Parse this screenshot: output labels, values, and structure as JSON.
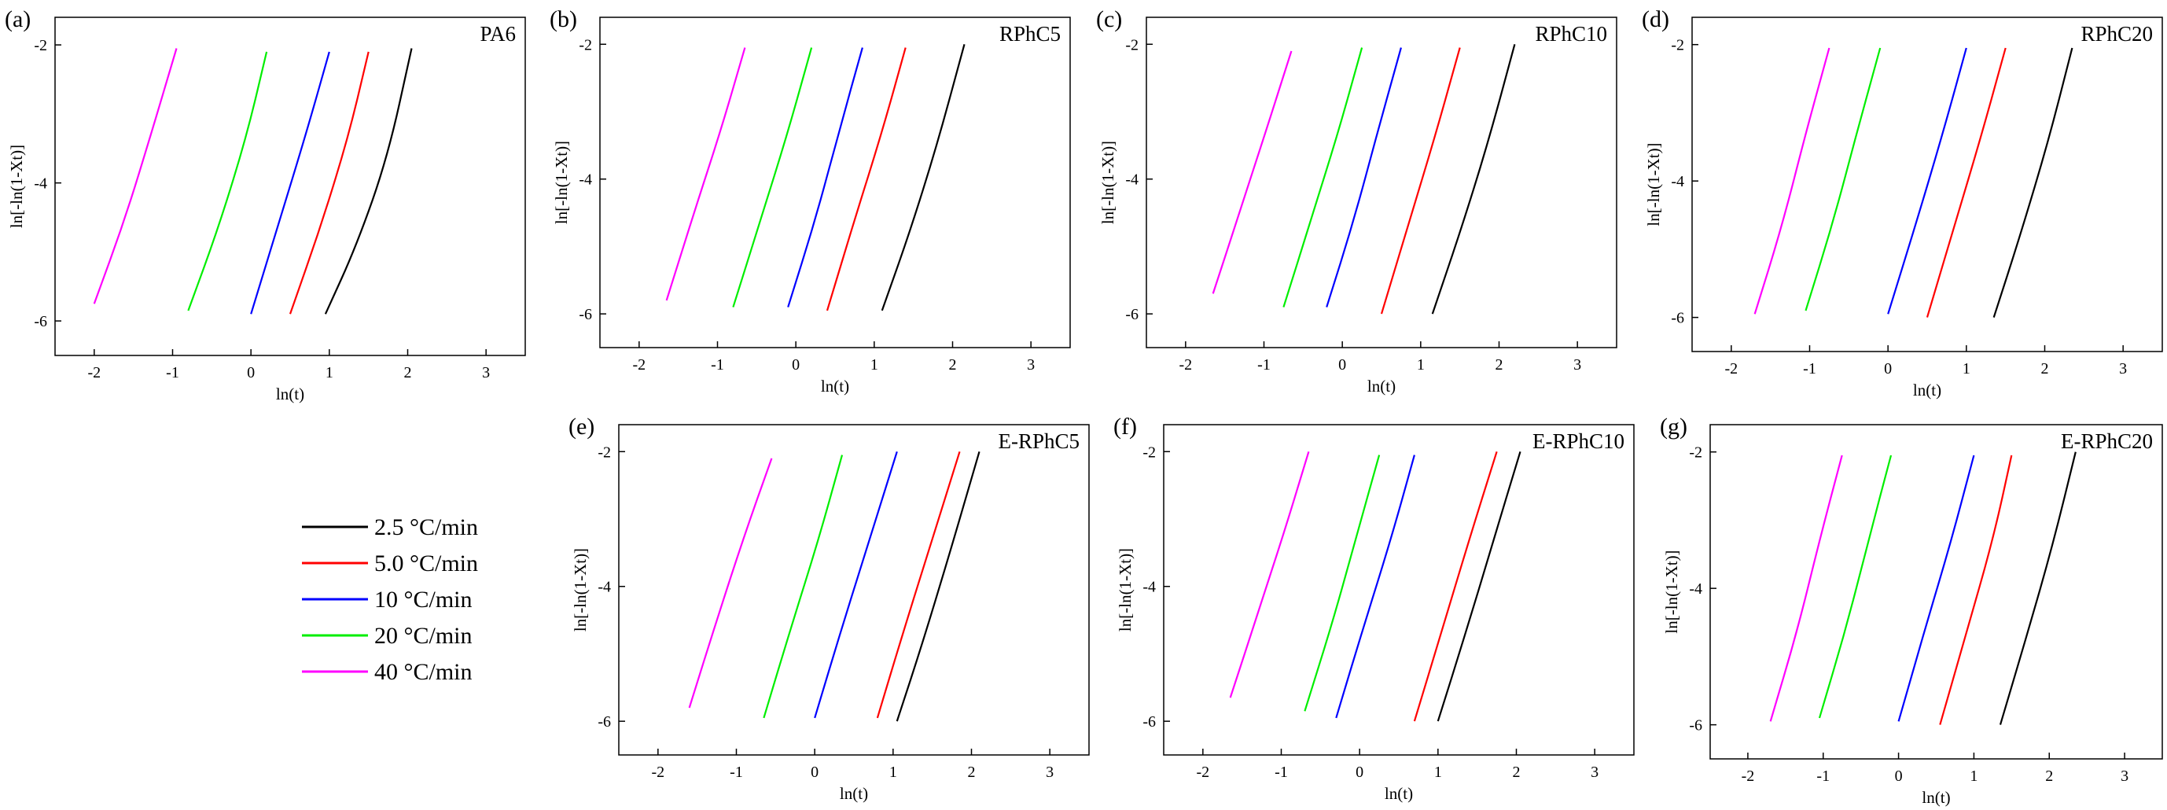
{
  "legend": {
    "entries": [
      {
        "label": "2.5 °C/min",
        "color": "#000000"
      },
      {
        "label": "5.0 °C/min",
        "color": "#ff0000"
      },
      {
        "label": "10 °C/min",
        "color": "#0000ff"
      },
      {
        "label": "20 °C/min",
        "color": "#00ee00"
      },
      {
        "label": "40 °C/min",
        "color": "#ff00ff"
      }
    ]
  },
  "chart_data": [
    {
      "type": "line",
      "panel": "(a)",
      "title": "PA6",
      "xlabel": "ln(t)",
      "ylabel": "ln[-ln(1-Xt)]",
      "xlim": [
        -2.5,
        3.5
      ],
      "ylim": [
        -6.5,
        -1.6
      ],
      "xticks": [
        "-2",
        "-1",
        "0",
        "1",
        "2",
        "3"
      ],
      "yticks": [
        "-2",
        "-4",
        "-6"
      ],
      "series": [
        {
          "name": "2.5 °C/min",
          "color": "#000000",
          "points": [
            [
              0.95,
              -5.9
            ],
            [
              1.35,
              -4.9
            ],
            [
              1.75,
              -3.6
            ],
            [
              2.05,
              -2.05
            ]
          ]
        },
        {
          "name": "5.0 °C/min",
          "color": "#ff0000",
          "points": [
            [
              0.5,
              -5.9
            ],
            [
              0.9,
              -4.6
            ],
            [
              1.25,
              -3.3
            ],
            [
              1.5,
              -2.1
            ]
          ]
        },
        {
          "name": "10 °C/min",
          "color": "#0000ff",
          "points": [
            [
              0.0,
              -5.9
            ],
            [
              0.35,
              -4.6
            ],
            [
              0.7,
              -3.3
            ],
            [
              1.0,
              -2.1
            ]
          ]
        },
        {
          "name": "20 °C/min",
          "color": "#00ee00",
          "points": [
            [
              -0.8,
              -5.85
            ],
            [
              -0.4,
              -4.6
            ],
            [
              -0.05,
              -3.3
            ],
            [
              0.2,
              -2.1
            ]
          ]
        },
        {
          "name": "40 °C/min",
          "color": "#ff00ff",
          "points": [
            [
              -2.0,
              -5.75
            ],
            [
              -1.6,
              -4.5
            ],
            [
              -1.25,
              -3.2
            ],
            [
              -0.95,
              -2.05
            ]
          ]
        }
      ]
    },
    {
      "type": "line",
      "panel": "(b)",
      "title": "RPhC5",
      "xlabel": "ln(t)",
      "ylabel": "ln[-ln(1-Xt)]",
      "xlim": [
        -2.5,
        3.5
      ],
      "ylim": [
        -6.5,
        -1.6
      ],
      "xticks": [
        "-2",
        "-1",
        "0",
        "1",
        "2",
        "3"
      ],
      "yticks": [
        "-2",
        "-4",
        "-6"
      ],
      "series": [
        {
          "name": "2.5 °C/min",
          "color": "#000000",
          "points": [
            [
              1.1,
              -5.95
            ],
            [
              1.45,
              -4.8
            ],
            [
              1.8,
              -3.5
            ],
            [
              2.15,
              -2.0
            ]
          ]
        },
        {
          "name": "5.0 °C/min",
          "color": "#ff0000",
          "points": [
            [
              0.4,
              -5.95
            ],
            [
              0.75,
              -4.6
            ],
            [
              1.1,
              -3.3
            ],
            [
              1.4,
              -2.05
            ]
          ]
        },
        {
          "name": "10 °C/min",
          "color": "#0000ff",
          "points": [
            [
              -0.1,
              -5.9
            ],
            [
              0.25,
              -4.6
            ],
            [
              0.55,
              -3.3
            ],
            [
              0.85,
              -2.05
            ]
          ]
        },
        {
          "name": "20 °C/min",
          "color": "#00ee00",
          "points": [
            [
              -0.8,
              -5.9
            ],
            [
              -0.45,
              -4.6
            ],
            [
              -0.1,
              -3.3
            ],
            [
              0.2,
              -2.05
            ]
          ]
        },
        {
          "name": "40 °C/min",
          "color": "#ff00ff",
          "points": [
            [
              -1.65,
              -5.8
            ],
            [
              -1.3,
              -4.5
            ],
            [
              -0.95,
              -3.25
            ],
            [
              -0.65,
              -2.05
            ]
          ]
        }
      ]
    },
    {
      "type": "line",
      "panel": "(c)",
      "title": "RPhC10",
      "xlabel": "ln(t)",
      "ylabel": "ln[-ln(1-Xt)]",
      "xlim": [
        -2.5,
        3.5
      ],
      "ylim": [
        -6.5,
        -1.6
      ],
      "xticks": [
        "-2",
        "-1",
        "0",
        "1",
        "2",
        "3"
      ],
      "yticks": [
        "-2",
        "-4",
        "-6"
      ],
      "series": [
        {
          "name": "2.5 °C/min",
          "color": "#000000",
          "points": [
            [
              1.15,
              -6.0
            ],
            [
              1.5,
              -4.8
            ],
            [
              1.85,
              -3.5
            ],
            [
              2.2,
              -2.0
            ]
          ]
        },
        {
          "name": "5.0 °C/min",
          "color": "#ff0000",
          "points": [
            [
              0.5,
              -6.0
            ],
            [
              0.85,
              -4.65
            ],
            [
              1.2,
              -3.3
            ],
            [
              1.5,
              -2.05
            ]
          ]
        },
        {
          "name": "10 °C/min",
          "color": "#0000ff",
          "points": [
            [
              -0.2,
              -5.9
            ],
            [
              0.15,
              -4.6
            ],
            [
              0.45,
              -3.3
            ],
            [
              0.75,
              -2.05
            ]
          ]
        },
        {
          "name": "20 °C/min",
          "color": "#00ee00",
          "points": [
            [
              -0.75,
              -5.9
            ],
            [
              -0.4,
              -4.6
            ],
            [
              -0.05,
              -3.3
            ],
            [
              0.25,
              -2.05
            ]
          ]
        },
        {
          "name": "40 °C/min",
          "color": "#ff00ff",
          "points": [
            [
              -1.65,
              -5.7
            ],
            [
              -1.3,
              -4.45
            ],
            [
              -0.95,
              -3.2
            ],
            [
              -0.65,
              -2.1
            ]
          ]
        }
      ]
    },
    {
      "type": "line",
      "panel": "(d)",
      "title": "RPhC20",
      "xlabel": "ln(t)",
      "ylabel": "ln[-ln(1-Xt)]",
      "xlim": [
        -2.5,
        3.5
      ],
      "ylim": [
        -6.5,
        -1.6
      ],
      "xticks": [
        "-2",
        "-1",
        "0",
        "1",
        "2",
        "3"
      ],
      "yticks": [
        "-2",
        "-4",
        "-6"
      ],
      "series": [
        {
          "name": "2.5 °C/min",
          "color": "#000000",
          "points": [
            [
              1.35,
              -6.0
            ],
            [
              1.7,
              -4.75
            ],
            [
              2.05,
              -3.4
            ],
            [
              2.35,
              -2.05
            ]
          ]
        },
        {
          "name": "5.0 °C/min",
          "color": "#ff0000",
          "points": [
            [
              0.5,
              -6.0
            ],
            [
              0.85,
              -4.65
            ],
            [
              1.2,
              -3.3
            ],
            [
              1.5,
              -2.05
            ]
          ]
        },
        {
          "name": "10 °C/min",
          "color": "#0000ff",
          "points": [
            [
              0.0,
              -5.95
            ],
            [
              0.35,
              -4.65
            ],
            [
              0.7,
              -3.3
            ],
            [
              1.0,
              -2.05
            ]
          ]
        },
        {
          "name": "20 °C/min",
          "color": "#00ee00",
          "points": [
            [
              -1.05,
              -5.9
            ],
            [
              -0.7,
              -4.6
            ],
            [
              -0.4,
              -3.3
            ],
            [
              -0.1,
              -2.05
            ]
          ]
        },
        {
          "name": "40 °C/min",
          "color": "#ff00ff",
          "points": [
            [
              -1.7,
              -5.95
            ],
            [
              -1.35,
              -4.65
            ],
            [
              -1.05,
              -3.3
            ],
            [
              -0.75,
              -2.05
            ]
          ]
        }
      ]
    },
    {
      "type": "line",
      "panel": "(e)",
      "title": "E-RPhC5",
      "xlabel": "ln(t)",
      "ylabel": "ln[-ln(1-Xt)]",
      "xlim": [
        -2.5,
        3.5
      ],
      "ylim": [
        -6.5,
        -1.6
      ],
      "xticks": [
        "-2",
        "-1",
        "0",
        "1",
        "2",
        "3"
      ],
      "yticks": [
        "-2",
        "-4",
        "-6"
      ],
      "series": [
        {
          "name": "2.5 °C/min",
          "color": "#000000",
          "points": [
            [
              1.05,
              -6.0
            ],
            [
              1.4,
              -4.75
            ],
            [
              1.75,
              -3.4
            ],
            [
              2.1,
              -2.0
            ]
          ]
        },
        {
          "name": "5.0 °C/min",
          "color": "#ff0000",
          "points": [
            [
              0.8,
              -5.95
            ],
            [
              1.15,
              -4.6
            ],
            [
              1.5,
              -3.3
            ],
            [
              1.85,
              -2.0
            ]
          ]
        },
        {
          "name": "10 °C/min",
          "color": "#0000ff",
          "points": [
            [
              0.0,
              -5.95
            ],
            [
              0.35,
              -4.6
            ],
            [
              0.7,
              -3.3
            ],
            [
              1.05,
              -2.0
            ]
          ]
        },
        {
          "name": "20 °C/min",
          "color": "#00ee00",
          "points": [
            [
              -0.65,
              -5.95
            ],
            [
              -0.3,
              -4.6
            ],
            [
              0.05,
              -3.3
            ],
            [
              0.35,
              -2.05
            ]
          ]
        },
        {
          "name": "40 °C/min",
          "color": "#ff00ff",
          "points": [
            [
              -1.6,
              -5.8
            ],
            [
              -1.25,
              -4.5
            ],
            [
              -0.9,
              -3.25
            ],
            [
              -0.55,
              -2.1
            ]
          ]
        }
      ]
    },
    {
      "type": "line",
      "panel": "(f)",
      "title": "E-RPhC10",
      "xlabel": "ln(t)",
      "ylabel": "ln[-ln(1-Xt)]",
      "xlim": [
        -2.5,
        3.5
      ],
      "ylim": [
        -6.5,
        -1.6
      ],
      "xticks": [
        "-2",
        "-1",
        "0",
        "1",
        "2",
        "3"
      ],
      "yticks": [
        "-2",
        "-4",
        "-6"
      ],
      "series": [
        {
          "name": "2.5 °C/min",
          "color": "#000000",
          "points": [
            [
              1.0,
              -6.0
            ],
            [
              1.35,
              -4.7
            ],
            [
              1.7,
              -3.35
            ],
            [
              2.05,
              -2.0
            ]
          ]
        },
        {
          "name": "5.0 °C/min",
          "color": "#ff0000",
          "points": [
            [
              0.7,
              -6.0
            ],
            [
              1.05,
              -4.65
            ],
            [
              1.4,
              -3.3
            ],
            [
              1.75,
              -2.0
            ]
          ]
        },
        {
          "name": "10 °C/min",
          "color": "#0000ff",
          "points": [
            [
              -0.3,
              -5.95
            ],
            [
              0.05,
              -4.6
            ],
            [
              0.4,
              -3.3
            ],
            [
              0.7,
              -2.05
            ]
          ]
        },
        {
          "name": "20 °C/min",
          "color": "#00ee00",
          "points": [
            [
              -0.7,
              -5.85
            ],
            [
              -0.35,
              -4.55
            ],
            [
              -0.05,
              -3.3
            ],
            [
              0.25,
              -2.05
            ]
          ]
        },
        {
          "name": "40 °C/min",
          "color": "#ff00ff",
          "points": [
            [
              -1.65,
              -5.65
            ],
            [
              -1.3,
              -4.4
            ],
            [
              -0.95,
              -3.15
            ],
            [
              -0.65,
              -2.0
            ]
          ]
        }
      ]
    },
    {
      "type": "line",
      "panel": "(g)",
      "title": "E-RPhC20",
      "xlabel": "ln(t)",
      "ylabel": "ln[-ln(1-Xt)]",
      "xlim": [
        -2.5,
        3.5
      ],
      "ylim": [
        -6.5,
        -1.6
      ],
      "xticks": [
        "-2",
        "-1",
        "0",
        "1",
        "2",
        "3"
      ],
      "yticks": [
        "-2",
        "-4",
        "-6"
      ],
      "series": [
        {
          "name": "2.5 °C/min",
          "color": "#000000",
          "points": [
            [
              1.35,
              -6.0
            ],
            [
              1.7,
              -4.7
            ],
            [
              2.05,
              -3.35
            ],
            [
              2.35,
              -2.0
            ]
          ]
        },
        {
          "name": "5.0 °C/min",
          "color": "#ff0000",
          "points": [
            [
              0.55,
              -6.0
            ],
            [
              0.9,
              -4.65
            ],
            [
              1.25,
              -3.3
            ],
            [
              1.5,
              -2.05
            ]
          ]
        },
        {
          "name": "10 °C/min",
          "color": "#0000ff",
          "points": [
            [
              0.0,
              -5.95
            ],
            [
              0.35,
              -4.6
            ],
            [
              0.7,
              -3.3
            ],
            [
              1.0,
              -2.05
            ]
          ]
        },
        {
          "name": "20 °C/min",
          "color": "#00ee00",
          "points": [
            [
              -1.05,
              -5.9
            ],
            [
              -0.7,
              -4.6
            ],
            [
              -0.4,
              -3.3
            ],
            [
              -0.1,
              -2.05
            ]
          ]
        },
        {
          "name": "40 °C/min",
          "color": "#ff00ff",
          "points": [
            [
              -1.7,
              -5.95
            ],
            [
              -1.35,
              -4.65
            ],
            [
              -1.05,
              -3.3
            ],
            [
              -0.75,
              -2.05
            ]
          ]
        }
      ]
    }
  ]
}
